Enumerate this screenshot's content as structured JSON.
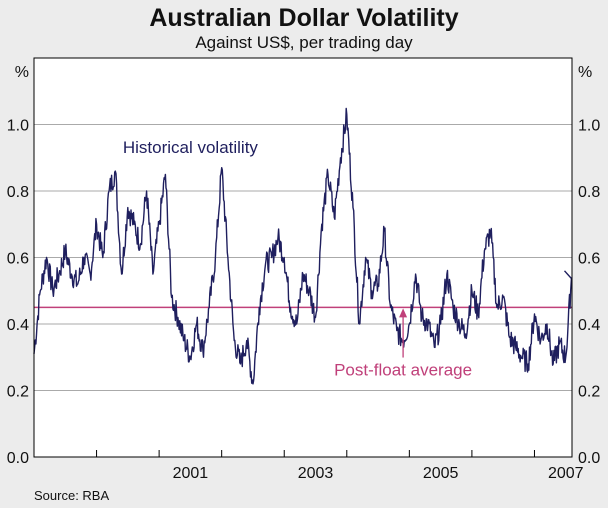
{
  "header": {
    "title": "Australian Dollar Volatility",
    "subtitle": "Against US$, per trading day"
  },
  "footer": {
    "source": "Source: RBA"
  },
  "colors": {
    "series": "#1f1f5e",
    "average": "#c0407a",
    "grid": "#aaaaaa",
    "axis": "#000000",
    "plot_bg": "#ffffff"
  },
  "chart_data": {
    "type": "line",
    "title": "Australian Dollar Volatility",
    "subtitle": "Against US$, per trading day",
    "ylabel_left": "%",
    "ylabel_right": "%",
    "xlim": [
      1999.0,
      2007.6
    ],
    "ylim": [
      0.0,
      1.2
    ],
    "yticks": [
      0.0,
      0.2,
      0.4,
      0.6,
      0.8,
      1.0
    ],
    "ytick_labels": [
      "0.0",
      "0.2",
      "0.4",
      "0.6",
      "0.8",
      "1.0"
    ],
    "xticks": [
      2001.5,
      2003.5,
      2005.5,
      2007.5
    ],
    "xtick_labels": [
      "2001",
      "2003",
      "2005",
      "2007"
    ],
    "grid": true,
    "series": [
      {
        "name": "Historical volatility",
        "x": [
          1999.0,
          1999.1,
          1999.2,
          1999.3,
          1999.4,
          1999.5,
          1999.6,
          1999.7,
          1999.8,
          1999.9,
          2000.0,
          2000.1,
          2000.2,
          2000.3,
          2000.4,
          2000.5,
          2000.6,
          2000.7,
          2000.8,
          2000.9,
          2001.0,
          2001.1,
          2001.2,
          2001.3,
          2001.4,
          2001.5,
          2001.6,
          2001.7,
          2001.8,
          2001.9,
          2002.0,
          2002.1,
          2002.2,
          2002.3,
          2002.4,
          2002.5,
          2002.6,
          2002.7,
          2002.8,
          2002.9,
          2003.0,
          2003.1,
          2003.2,
          2003.3,
          2003.4,
          2003.5,
          2003.6,
          2003.7,
          2003.8,
          2003.9,
          2004.0,
          2004.1,
          2004.2,
          2004.3,
          2004.4,
          2004.5,
          2004.6,
          2004.7,
          2004.8,
          2004.9,
          2005.0,
          2005.1,
          2005.2,
          2005.3,
          2005.4,
          2005.5,
          2005.6,
          2005.7,
          2005.8,
          2005.9,
          2006.0,
          2006.1,
          2006.2,
          2006.3,
          2006.4,
          2006.5,
          2006.6,
          2006.7,
          2006.8,
          2006.9,
          2007.0,
          2007.1,
          2007.2,
          2007.3,
          2007.4,
          2007.5,
          2007.6
        ],
        "values": [
          0.31,
          0.5,
          0.6,
          0.5,
          0.55,
          0.62,
          0.55,
          0.52,
          0.6,
          0.55,
          0.7,
          0.6,
          0.8,
          0.86,
          0.55,
          0.75,
          0.7,
          0.64,
          0.8,
          0.55,
          0.7,
          0.85,
          0.48,
          0.42,
          0.35,
          0.3,
          0.4,
          0.32,
          0.45,
          0.6,
          0.87,
          0.6,
          0.35,
          0.28,
          0.35,
          0.22,
          0.45,
          0.58,
          0.6,
          0.66,
          0.6,
          0.45,
          0.4,
          0.55,
          0.5,
          0.42,
          0.7,
          0.85,
          0.72,
          0.9,
          1.03,
          0.75,
          0.4,
          0.6,
          0.5,
          0.52,
          0.68,
          0.45,
          0.38,
          0.35,
          0.4,
          0.55,
          0.42,
          0.4,
          0.33,
          0.4,
          0.55,
          0.45,
          0.4,
          0.37,
          0.5,
          0.43,
          0.62,
          0.68,
          0.45,
          0.48,
          0.36,
          0.33,
          0.3,
          0.28,
          0.43,
          0.35,
          0.4,
          0.28,
          0.34,
          0.3,
          0.56
        ]
      },
      {
        "name": "Post-float average",
        "value": 0.45
      }
    ],
    "annotations": [
      {
        "text": "Historical volatility",
        "x": 2001.5,
        "y": 0.915
      },
      {
        "text": "Post-float average",
        "x": 2004.9,
        "y": 0.245,
        "arrow_to": 0.45,
        "arrow_x": 2004.9
      }
    ]
  }
}
